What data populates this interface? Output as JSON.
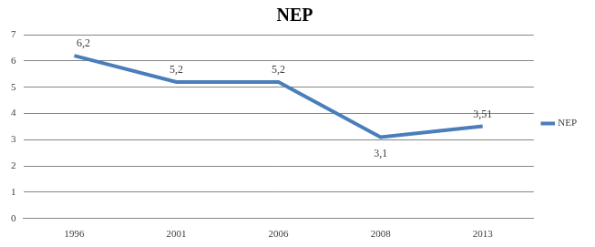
{
  "chart_data": {
    "type": "line",
    "title": "NEP",
    "categories": [
      "1996",
      "2001",
      "2006",
      "2008",
      "2013"
    ],
    "series": [
      {
        "name": "NEP",
        "color": "#4a7ebb",
        "values": [
          6.2,
          5.2,
          5.2,
          3.1,
          3.51
        ],
        "value_labels": [
          "6,2",
          "5,2",
          "5,2",
          "3,1",
          "3,51"
        ]
      }
    ],
    "ylim": [
      0,
      7
    ],
    "yticks": [
      0,
      1,
      2,
      3,
      4,
      5,
      6,
      7
    ],
    "grid": true,
    "legend": "right",
    "data_labels": true
  }
}
